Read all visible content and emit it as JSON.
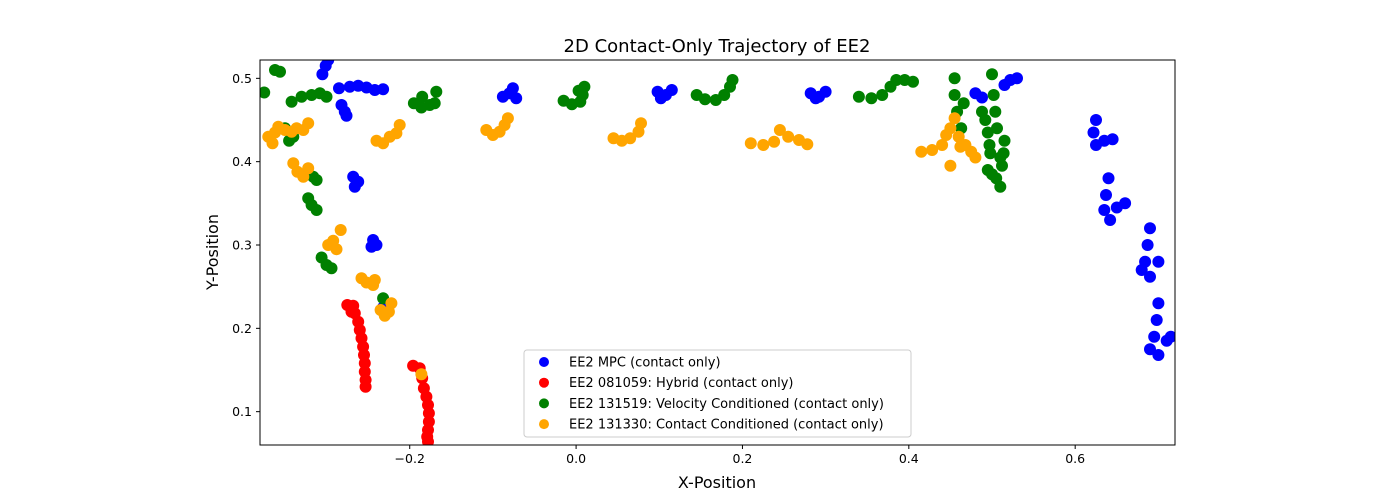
{
  "chart_data": {
    "type": "scatter",
    "title": "2D Contact-Only Trajectory of EE2",
    "xlabel": "X-Position",
    "ylabel": "Y-Position",
    "xlim": [
      -0.38,
      0.72
    ],
    "ylim": [
      0.06,
      0.522
    ],
    "xticks": [
      -0.2,
      0.0,
      0.2,
      0.4,
      0.6
    ],
    "xtick_labels": [
      "−0.2",
      "0.0",
      "0.2",
      "0.4",
      "0.6"
    ],
    "yticks": [
      0.1,
      0.2,
      0.3,
      0.4,
      0.5
    ],
    "ytick_labels": [
      "0.1",
      "0.2",
      "0.3",
      "0.4",
      "0.5"
    ],
    "grid": false,
    "legend_position": "bottom-center",
    "series": [
      {
        "name": "EE2 MPC (contact only)",
        "color": "#0000ff",
        "points": [
          [
            -0.305,
            0.505
          ],
          [
            -0.301,
            0.515
          ],
          [
            -0.298,
            0.522
          ],
          [
            -0.285,
            0.488
          ],
          [
            -0.272,
            0.49
          ],
          [
            -0.262,
            0.491
          ],
          [
            -0.252,
            0.489
          ],
          [
            -0.242,
            0.486
          ],
          [
            -0.232,
            0.487
          ],
          [
            -0.282,
            0.468
          ],
          [
            -0.278,
            0.46
          ],
          [
            -0.276,
            0.455
          ],
          [
            -0.268,
            0.382
          ],
          [
            -0.262,
            0.376
          ],
          [
            -0.266,
            0.37
          ],
          [
            -0.244,
            0.306
          ],
          [
            -0.24,
            0.3
          ],
          [
            -0.246,
            0.298
          ],
          [
            -0.232,
            0.225
          ],
          [
            -0.226,
            0.223
          ],
          [
            -0.08,
            0.482
          ],
          [
            -0.072,
            0.476
          ],
          [
            -0.088,
            0.478
          ],
          [
            -0.076,
            0.488
          ],
          [
            0.098,
            0.484
          ],
          [
            0.108,
            0.48
          ],
          [
            0.115,
            0.486
          ],
          [
            0.102,
            0.476
          ],
          [
            0.282,
            0.482
          ],
          [
            0.292,
            0.478
          ],
          [
            0.3,
            0.484
          ],
          [
            0.288,
            0.476
          ],
          [
            0.48,
            0.482
          ],
          [
            0.488,
            0.477
          ],
          [
            0.515,
            0.492
          ],
          [
            0.522,
            0.498
          ],
          [
            0.53,
            0.5
          ],
          [
            0.625,
            0.45
          ],
          [
            0.622,
            0.435
          ],
          [
            0.625,
            0.42
          ],
          [
            0.635,
            0.425
          ],
          [
            0.645,
            0.427
          ],
          [
            0.64,
            0.38
          ],
          [
            0.637,
            0.36
          ],
          [
            0.635,
            0.342
          ],
          [
            0.642,
            0.33
          ],
          [
            0.65,
            0.345
          ],
          [
            0.66,
            0.35
          ],
          [
            0.69,
            0.32
          ],
          [
            0.687,
            0.3
          ],
          [
            0.684,
            0.28
          ],
          [
            0.68,
            0.27
          ],
          [
            0.69,
            0.262
          ],
          [
            0.7,
            0.28
          ],
          [
            0.7,
            0.23
          ],
          [
            0.698,
            0.21
          ],
          [
            0.695,
            0.19
          ],
          [
            0.69,
            0.175
          ],
          [
            0.7,
            0.168
          ],
          [
            0.71,
            0.185
          ],
          [
            0.715,
            0.19
          ]
        ]
      },
      {
        "name": "EE2 081059: Hybrid (contact only)",
        "color": "#ff0000",
        "points": [
          [
            -0.275,
            0.228
          ],
          [
            -0.268,
            0.227
          ],
          [
            -0.266,
            0.218
          ],
          [
            -0.262,
            0.208
          ],
          [
            -0.26,
            0.198
          ],
          [
            -0.258,
            0.188
          ],
          [
            -0.256,
            0.178
          ],
          [
            -0.255,
            0.168
          ],
          [
            -0.254,
            0.158
          ],
          [
            -0.254,
            0.148
          ],
          [
            -0.253,
            0.138
          ],
          [
            -0.253,
            0.13
          ],
          [
            -0.27,
            0.22
          ],
          [
            -0.196,
            0.155
          ],
          [
            -0.188,
            0.152
          ],
          [
            -0.185,
            0.14
          ],
          [
            -0.183,
            0.128
          ],
          [
            -0.18,
            0.118
          ],
          [
            -0.178,
            0.108
          ],
          [
            -0.177,
            0.098
          ],
          [
            -0.177,
            0.088
          ],
          [
            -0.178,
            0.078
          ],
          [
            -0.179,
            0.07
          ],
          [
            -0.178,
            0.064
          ]
        ]
      },
      {
        "name": "EE2 131519: Velocity Conditioned (contact only)",
        "color": "#008000",
        "points": [
          [
            -0.375,
            0.483
          ],
          [
            -0.362,
            0.51
          ],
          [
            -0.356,
            0.508
          ],
          [
            -0.342,
            0.472
          ],
          [
            -0.33,
            0.478
          ],
          [
            -0.318,
            0.48
          ],
          [
            -0.308,
            0.482
          ],
          [
            -0.3,
            0.478
          ],
          [
            -0.35,
            0.44
          ],
          [
            -0.345,
            0.425
          ],
          [
            -0.34,
            0.43
          ],
          [
            -0.316,
            0.382
          ],
          [
            -0.312,
            0.378
          ],
          [
            -0.322,
            0.356
          ],
          [
            -0.318,
            0.348
          ],
          [
            -0.312,
            0.342
          ],
          [
            -0.306,
            0.285
          ],
          [
            -0.3,
            0.276
          ],
          [
            -0.294,
            0.272
          ],
          [
            -0.232,
            0.236
          ],
          [
            -0.195,
            0.47
          ],
          [
            -0.186,
            0.465
          ],
          [
            -0.176,
            0.468
          ],
          [
            -0.17,
            0.47
          ],
          [
            -0.168,
            0.484
          ],
          [
            -0.185,
            0.478
          ],
          [
            -0.015,
            0.473
          ],
          [
            -0.005,
            0.469
          ],
          [
            0.005,
            0.472
          ],
          [
            0.003,
            0.485
          ],
          [
            0.01,
            0.49
          ],
          [
            0.008,
            0.48
          ],
          [
            0.145,
            0.48
          ],
          [
            0.155,
            0.475
          ],
          [
            0.168,
            0.474
          ],
          [
            0.178,
            0.48
          ],
          [
            0.185,
            0.49
          ],
          [
            0.188,
            0.498
          ],
          [
            0.34,
            0.478
          ],
          [
            0.355,
            0.476
          ],
          [
            0.368,
            0.48
          ],
          [
            0.378,
            0.49
          ],
          [
            0.385,
            0.498
          ],
          [
            0.395,
            0.498
          ],
          [
            0.405,
            0.496
          ],
          [
            0.455,
            0.5
          ],
          [
            0.455,
            0.48
          ],
          [
            0.458,
            0.46
          ],
          [
            0.463,
            0.44
          ],
          [
            0.466,
            0.47
          ],
          [
            0.488,
            0.46
          ],
          [
            0.492,
            0.45
          ],
          [
            0.495,
            0.435
          ],
          [
            0.497,
            0.42
          ],
          [
            0.498,
            0.41
          ],
          [
            0.5,
            0.505
          ],
          [
            0.502,
            0.48
          ],
          [
            0.504,
            0.46
          ],
          [
            0.506,
            0.44
          ],
          [
            0.495,
            0.39
          ],
          [
            0.5,
            0.385
          ],
          [
            0.505,
            0.38
          ],
          [
            0.51,
            0.37
          ],
          [
            0.512,
            0.395
          ],
          [
            0.514,
            0.41
          ],
          [
            0.515,
            0.425
          ],
          [
            0.51,
            0.405
          ]
        ]
      },
      {
        "name": "EE2 131330: Contact Conditioned (contact only)",
        "color": "#ffa500",
        "points": [
          [
            -0.37,
            0.43
          ],
          [
            -0.365,
            0.422
          ],
          [
            -0.362,
            0.435
          ],
          [
            -0.358,
            0.442
          ],
          [
            -0.35,
            0.438
          ],
          [
            -0.342,
            0.436
          ],
          [
            -0.336,
            0.44
          ],
          [
            -0.328,
            0.438
          ],
          [
            -0.322,
            0.446
          ],
          [
            -0.34,
            0.398
          ],
          [
            -0.335,
            0.388
          ],
          [
            -0.328,
            0.382
          ],
          [
            -0.322,
            0.392
          ],
          [
            -0.298,
            0.3
          ],
          [
            -0.292,
            0.305
          ],
          [
            -0.288,
            0.295
          ],
          [
            -0.283,
            0.318
          ],
          [
            -0.258,
            0.26
          ],
          [
            -0.252,
            0.255
          ],
          [
            -0.244,
            0.252
          ],
          [
            -0.242,
            0.258
          ],
          [
            -0.235,
            0.222
          ],
          [
            -0.23,
            0.215
          ],
          [
            -0.225,
            0.22
          ],
          [
            -0.222,
            0.23
          ],
          [
            -0.186,
            0.145
          ],
          [
            -0.24,
            0.425
          ],
          [
            -0.232,
            0.422
          ],
          [
            -0.224,
            0.43
          ],
          [
            -0.216,
            0.434
          ],
          [
            -0.212,
            0.444
          ],
          [
            -0.108,
            0.438
          ],
          [
            -0.1,
            0.432
          ],
          [
            -0.092,
            0.436
          ],
          [
            -0.086,
            0.444
          ],
          [
            -0.082,
            0.452
          ],
          [
            0.045,
            0.428
          ],
          [
            0.055,
            0.425
          ],
          [
            0.065,
            0.428
          ],
          [
            0.075,
            0.436
          ],
          [
            0.078,
            0.446
          ],
          [
            0.21,
            0.422
          ],
          [
            0.225,
            0.42
          ],
          [
            0.238,
            0.424
          ],
          [
            0.245,
            0.438
          ],
          [
            0.255,
            0.43
          ],
          [
            0.268,
            0.426
          ],
          [
            0.278,
            0.421
          ],
          [
            0.415,
            0.412
          ],
          [
            0.428,
            0.414
          ],
          [
            0.44,
            0.42
          ],
          [
            0.445,
            0.432
          ],
          [
            0.45,
            0.44
          ],
          [
            0.455,
            0.452
          ],
          [
            0.46,
            0.43
          ],
          [
            0.468,
            0.42
          ],
          [
            0.475,
            0.412
          ],
          [
            0.48,
            0.405
          ],
          [
            0.45,
            0.395
          ],
          [
            0.462,
            0.418
          ]
        ]
      }
    ]
  }
}
